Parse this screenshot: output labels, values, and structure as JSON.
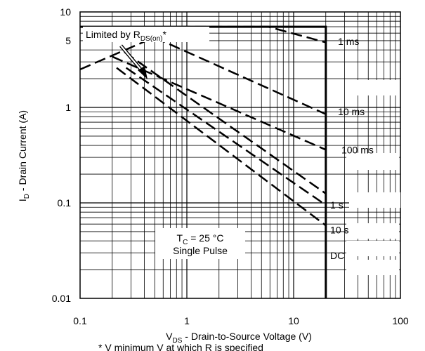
{
  "chart_data": {
    "type": "line",
    "xscale": "log",
    "yscale": "log",
    "xlim": [
      0.1,
      100
    ],
    "ylim": [
      0.01,
      10
    ],
    "grid": true,
    "xlabel": {
      "main": "V",
      "sub": "DS",
      "rest": " - Drain-to-Source Voltage (V)"
    },
    "ylabel": {
      "main": "I",
      "sub": "D",
      "rest": " - Drain Current (A)"
    },
    "x_ticks": [
      {
        "value": 0.1,
        "label": "0.1"
      },
      {
        "value": 1,
        "label": "1"
      },
      {
        "value": 10,
        "label": "10"
      },
      {
        "value": 100,
        "label": "100"
      }
    ],
    "y_ticks": [
      {
        "value": 0.01,
        "label": "0.01"
      },
      {
        "value": 0.1,
        "label": "0.1"
      },
      {
        "value": 1,
        "label": "1"
      },
      {
        "value": 5,
        "label": "5"
      },
      {
        "value": 10,
        "label": "10"
      }
    ],
    "series": [
      {
        "name": "Limited by RDS(on)*",
        "style": "dashed",
        "points": [
          [
            0.1,
            2.5
          ],
          [
            0.84,
            7.0
          ]
        ]
      },
      {
        "name": "1 ms",
        "style": "dashed",
        "points": [
          [
            0.84,
            7.0
          ],
          [
            5.8,
            7.0
          ],
          [
            20,
            4.8
          ]
        ]
      },
      {
        "name": "10 ms",
        "style": "dashed",
        "points": [
          [
            0.5,
            5.4
          ],
          [
            20,
            0.85
          ]
        ]
      },
      {
        "name": "100 ms",
        "style": "dashed",
        "points": [
          [
            0.2,
            3.4
          ],
          [
            20,
            0.36
          ]
        ]
      },
      {
        "name": "1 s",
        "style": "dashed",
        "points": [
          [
            0.26,
            3.8
          ],
          [
            20,
            0.125
          ]
        ]
      },
      {
        "name": "10 s",
        "style": "dashed",
        "points": [
          [
            0.27,
            2.6
          ],
          [
            20,
            0.095
          ]
        ]
      },
      {
        "name": "DC",
        "style": "dashed",
        "points": [
          [
            0.22,
            2.6
          ],
          [
            20,
            0.058
          ]
        ]
      },
      {
        "name": "Boundary",
        "style": "solid",
        "points": [
          [
            0.1,
            7.0
          ],
          [
            20,
            7.0
          ],
          [
            20,
            0.01
          ]
        ]
      }
    ],
    "curve_labels": [
      {
        "text": "1 ms",
        "at": [
          26,
          4.9
        ]
      },
      {
        "text": "10 ms",
        "at": [
          26,
          0.9
        ]
      },
      {
        "text": "100 ms",
        "at": [
          28,
          0.36
        ]
      },
      {
        "text": "1 s",
        "at": [
          22,
          0.095
        ]
      },
      {
        "text": "10 s",
        "at": [
          22,
          0.052
        ]
      },
      {
        "text": "DC",
        "at": [
          22,
          0.028
        ]
      }
    ],
    "annotations": {
      "rds": {
        "main": "Limited by R",
        "sub": "DS(on)",
        "suffix": "*"
      },
      "conditions_line1": {
        "main": "T",
        "sub": "C",
        "rest": " = 25 °C"
      },
      "conditions_line2": "Single Pulse"
    },
    "footnote": "* V     minimum V    at which R      is specified"
  }
}
